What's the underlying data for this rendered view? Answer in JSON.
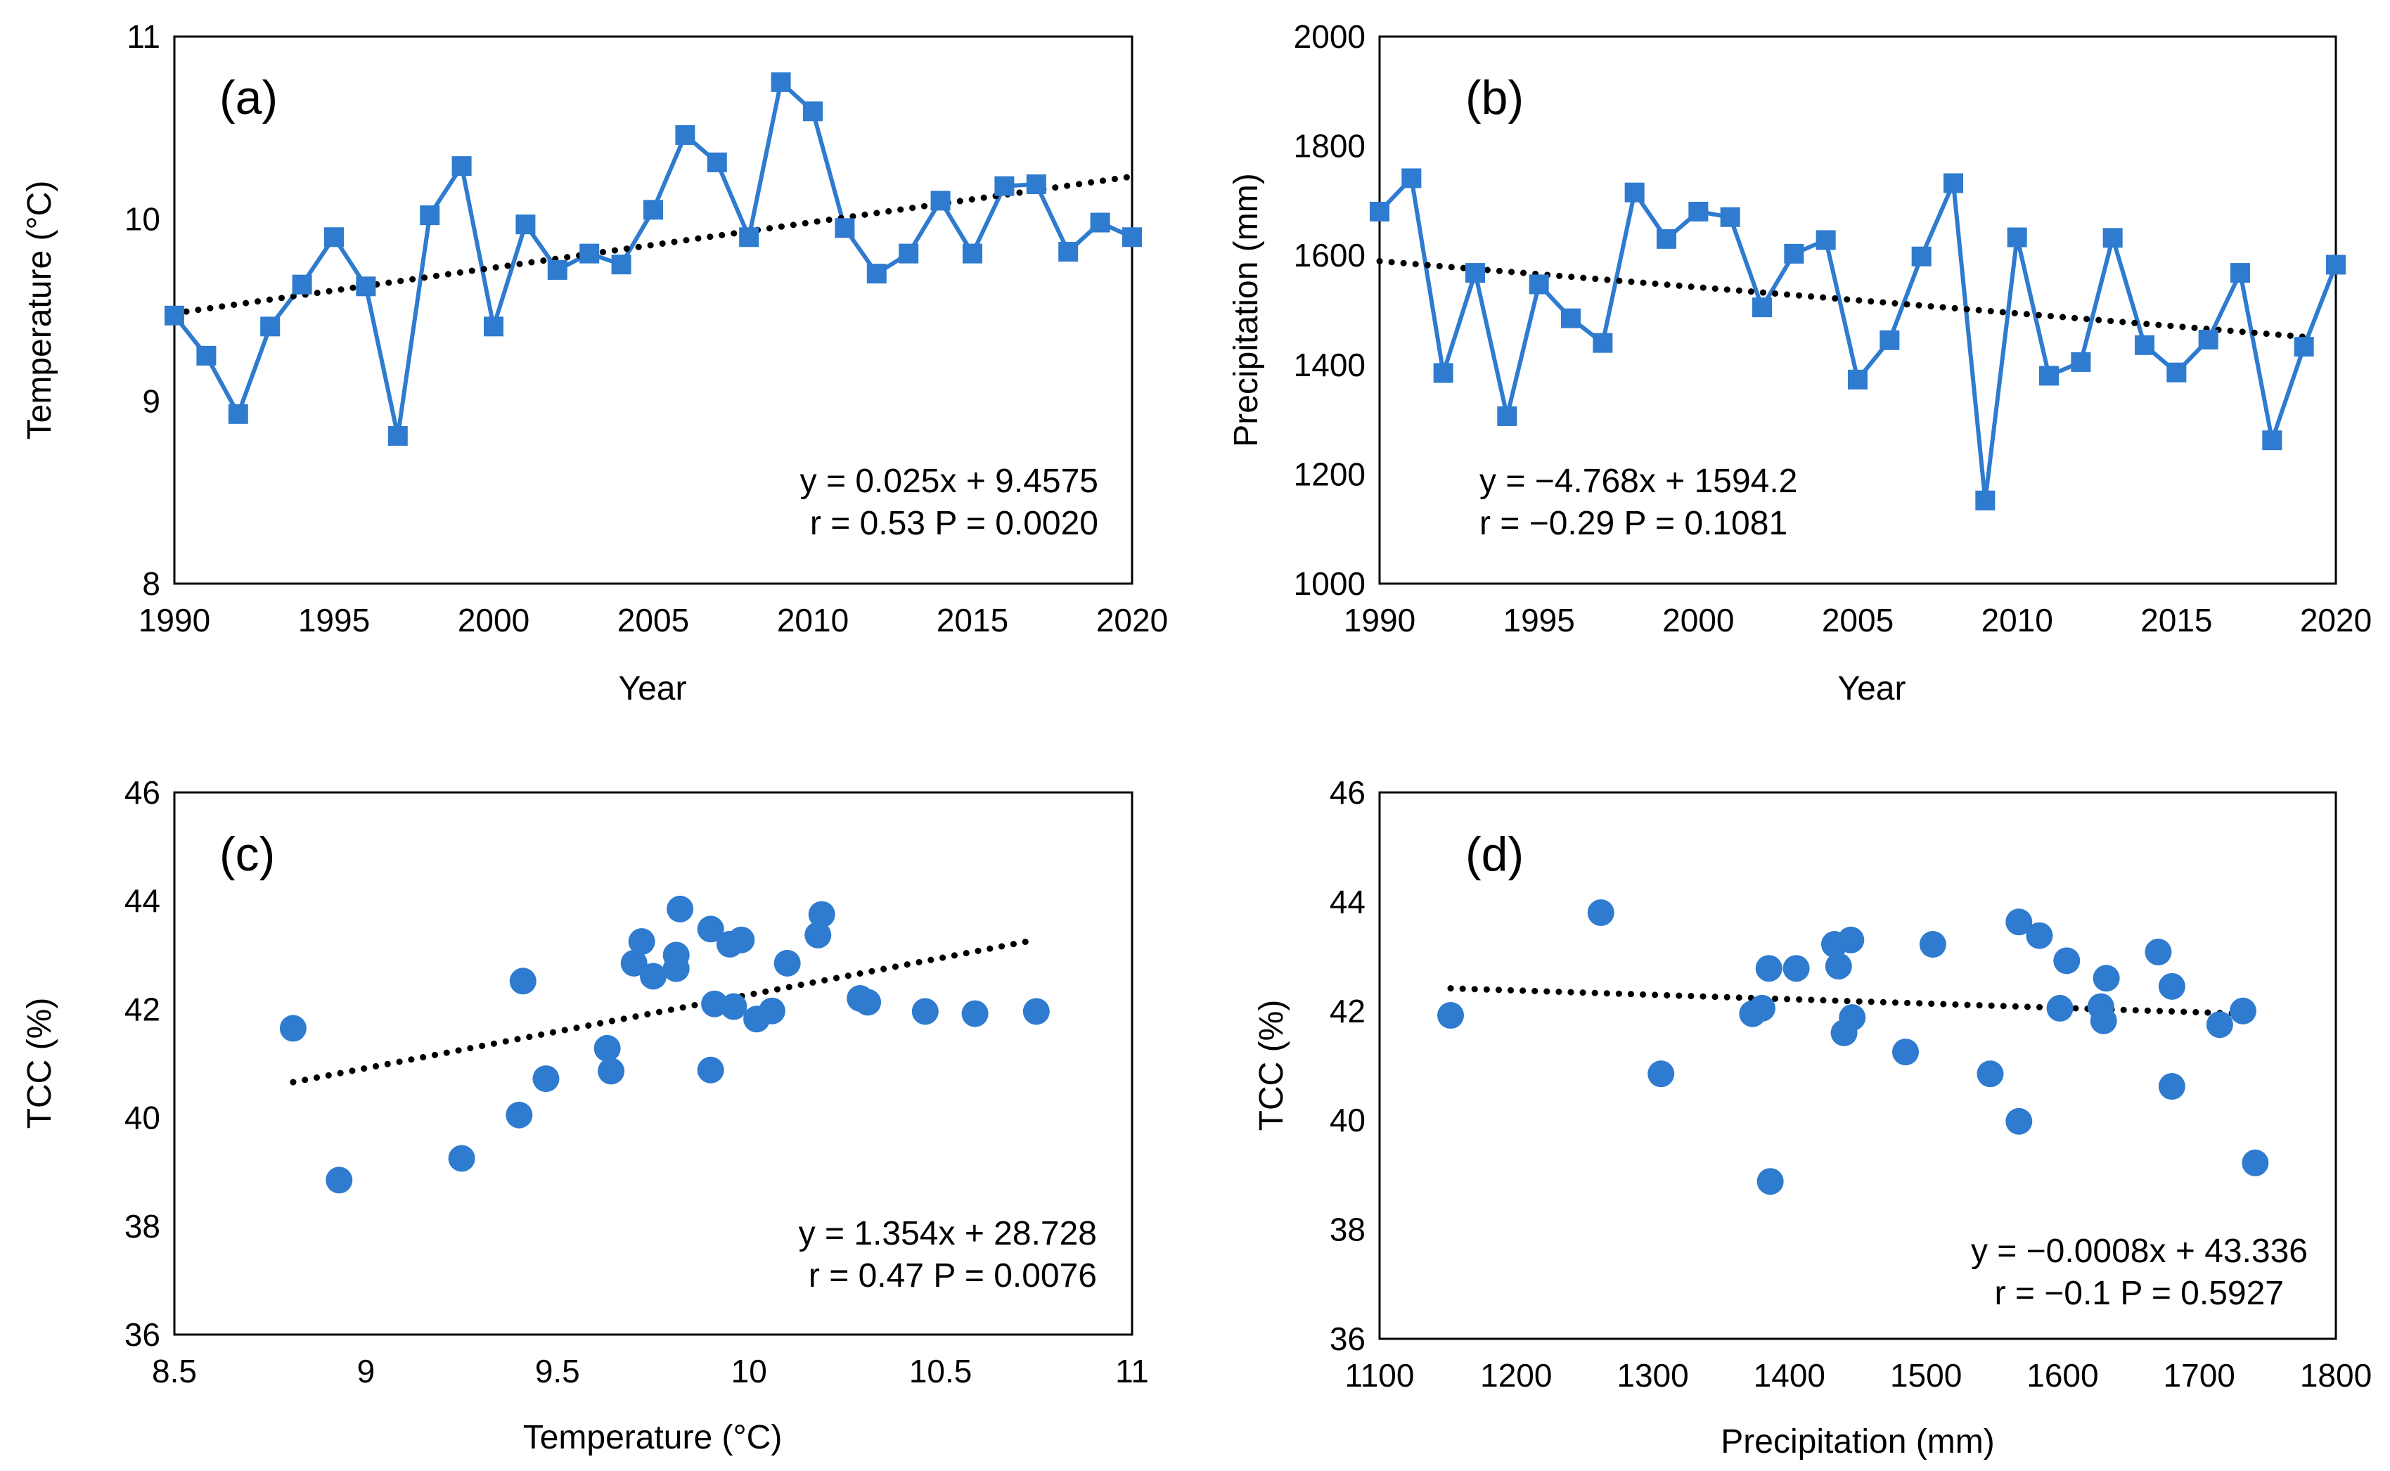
{
  "colors": {
    "series": "#2E7BCF",
    "trend": "#000000",
    "axis": "#000000"
  },
  "chart_data": [
    {
      "id": "a",
      "type": "line",
      "panel_label": "(a)",
      "xlabel": "Year",
      "ylabel": "Temperature (°C)",
      "xlim": [
        1990,
        2020
      ],
      "ylim": [
        8,
        11
      ],
      "xticks": [
        "1990",
        "1995",
        "2000",
        "2005",
        "2010",
        "2015",
        "2020"
      ],
      "yticks": [
        "8",
        "9",
        "10",
        "11"
      ],
      "x": [
        1990,
        1991,
        1992,
        1993,
        1994,
        1995,
        1996,
        1997,
        1998,
        1999,
        2000,
        2001,
        2002,
        2003,
        2004,
        2005,
        2006,
        2007,
        2008,
        2009,
        2010,
        2011,
        2012,
        2013,
        2014,
        2015,
        2016,
        2017,
        2018,
        2019,
        2020
      ],
      "values": [
        9.47,
        9.25,
        8.93,
        9.41,
        9.64,
        9.9,
        9.63,
        8.81,
        10.02,
        10.29,
        9.41,
        9.97,
        9.72,
        9.81,
        9.75,
        10.05,
        10.46,
        10.31,
        9.9,
        10.75,
        10.59,
        9.95,
        9.7,
        9.81,
        10.1,
        9.81,
        10.18,
        10.19,
        9.82,
        9.98,
        9.9
      ],
      "trend": {
        "slope": 0.025,
        "intercept": 9.4575,
        "x_start": 1990,
        "x_end": 2020,
        "eq_from": 1
      },
      "equation": "y = 0.025x + 9.4575",
      "stats": "r = 0.53 P = 0.0020"
    },
    {
      "id": "b",
      "type": "line",
      "panel_label": "(b)",
      "xlabel": "Year",
      "ylabel": "Precipitation (mm)",
      "xlim": [
        1990,
        2020
      ],
      "ylim": [
        1000,
        2000
      ],
      "xticks": [
        "1990",
        "1995",
        "2000",
        "2005",
        "2010",
        "2015",
        "2020"
      ],
      "yticks": [
        "1000",
        "1200",
        "1400",
        "1600",
        "1800",
        "2000"
      ],
      "x": [
        1990,
        1991,
        1992,
        1993,
        1994,
        1995,
        1996,
        1997,
        1998,
        1999,
        2000,
        2001,
        2002,
        2003,
        2004,
        2005,
        2006,
        2007,
        2008,
        2009,
        2010,
        2011,
        2012,
        2013,
        2014,
        2015,
        2016,
        2017,
        2018,
        2019,
        2020
      ],
      "values": [
        1680,
        1741,
        1385,
        1568,
        1306,
        1547,
        1485,
        1440,
        1715,
        1630,
        1680,
        1670,
        1505,
        1603,
        1628,
        1373,
        1445,
        1598,
        1732,
        1152,
        1633,
        1380,
        1405,
        1632,
        1436,
        1386,
        1446,
        1568,
        1262,
        1433,
        1583
      ],
      "trend": {
        "slope": -4.768,
        "intercept": 1594.2,
        "x_start": 1990,
        "x_end": 2019,
        "eq_from": 1
      },
      "equation": "y = −4.768x + 1594.2",
      "stats": "r = −0.29 P = 0.1081"
    },
    {
      "id": "c",
      "type": "scatter",
      "panel_label": "(c)",
      "xlabel": "Temperature (°C)",
      "ylabel": "TCC (%)",
      "xlim": [
        8.5,
        11
      ],
      "ylim": [
        36,
        46
      ],
      "xticks": [
        "8.5",
        "9",
        "9.5",
        "10",
        "10.5",
        "11"
      ],
      "yticks": [
        "36",
        "38",
        "40",
        "42",
        "44",
        "46"
      ],
      "points": [
        [
          8.81,
          41.65
        ],
        [
          8.93,
          38.85
        ],
        [
          9.25,
          39.25
        ],
        [
          9.4,
          40.05
        ],
        [
          9.41,
          42.52
        ],
        [
          9.47,
          40.72
        ],
        [
          9.63,
          41.28
        ],
        [
          9.64,
          40.86
        ],
        [
          9.7,
          42.85
        ],
        [
          9.72,
          43.25
        ],
        [
          9.75,
          42.61
        ],
        [
          9.81,
          43.0
        ],
        [
          9.81,
          42.75
        ],
        [
          9.82,
          43.85
        ],
        [
          9.9,
          43.48
        ],
        [
          9.9,
          40.88
        ],
        [
          9.91,
          42.1
        ],
        [
          9.95,
          43.2
        ],
        [
          9.96,
          42.05
        ],
        [
          9.98,
          43.28
        ],
        [
          10.02,
          41.82
        ],
        [
          10.06,
          41.97
        ],
        [
          10.1,
          42.85
        ],
        [
          10.18,
          43.37
        ],
        [
          10.19,
          43.75
        ],
        [
          10.29,
          42.2
        ],
        [
          10.31,
          42.13
        ],
        [
          10.46,
          41.96
        ],
        [
          10.59,
          41.92
        ],
        [
          10.75,
          41.96
        ]
      ],
      "trend": {
        "slope": 1.354,
        "intercept": 28.728,
        "x_start": 8.81,
        "x_end": 10.75
      },
      "equation": "y = 1.354x + 28.728",
      "stats": "r = 0.47 P = 0.0076"
    },
    {
      "id": "d",
      "type": "scatter",
      "panel_label": "(d)",
      "xlabel": "Precipitation (mm)",
      "ylabel": "TCC (%)",
      "xlim": [
        1100,
        1800
      ],
      "ylim": [
        36,
        46
      ],
      "xticks": [
        "1100",
        "1200",
        "1300",
        "1400",
        "1500",
        "1600",
        "1700",
        "1800"
      ],
      "yticks": [
        "36",
        "38",
        "40",
        "42",
        "44",
        "46"
      ],
      "points": [
        [
          1152,
          41.92
        ],
        [
          1262,
          43.8
        ],
        [
          1306,
          40.85
        ],
        [
          1373,
          41.95
        ],
        [
          1380,
          42.05
        ],
        [
          1385,
          42.78
        ],
        [
          1386,
          38.88
        ],
        [
          1405,
          42.78
        ],
        [
          1433,
          43.22
        ],
        [
          1436,
          42.82
        ],
        [
          1440,
          41.6
        ],
        [
          1445,
          43.3
        ],
        [
          1446,
          41.88
        ],
        [
          1485,
          41.25
        ],
        [
          1505,
          43.22
        ],
        [
          1547,
          40.85
        ],
        [
          1568,
          39.98
        ],
        [
          1568,
          43.63
        ],
        [
          1583,
          43.38
        ],
        [
          1598,
          42.05
        ],
        [
          1603,
          42.92
        ],
        [
          1628,
          42.08
        ],
        [
          1630,
          41.82
        ],
        [
          1632,
          42.6
        ],
        [
          1670,
          43.08
        ],
        [
          1680,
          42.45
        ],
        [
          1680,
          40.62
        ],
        [
          1715,
          41.75
        ],
        [
          1732,
          42.0
        ],
        [
          1741,
          39.22
        ]
      ],
      "trend": {
        "slope": -0.0008,
        "intercept": 43.336,
        "x_start": 1152,
        "x_end": 1741
      },
      "equation": "y = −0.0008x + 43.336",
      "stats": "r = −0.1 P = 0.5927"
    }
  ]
}
